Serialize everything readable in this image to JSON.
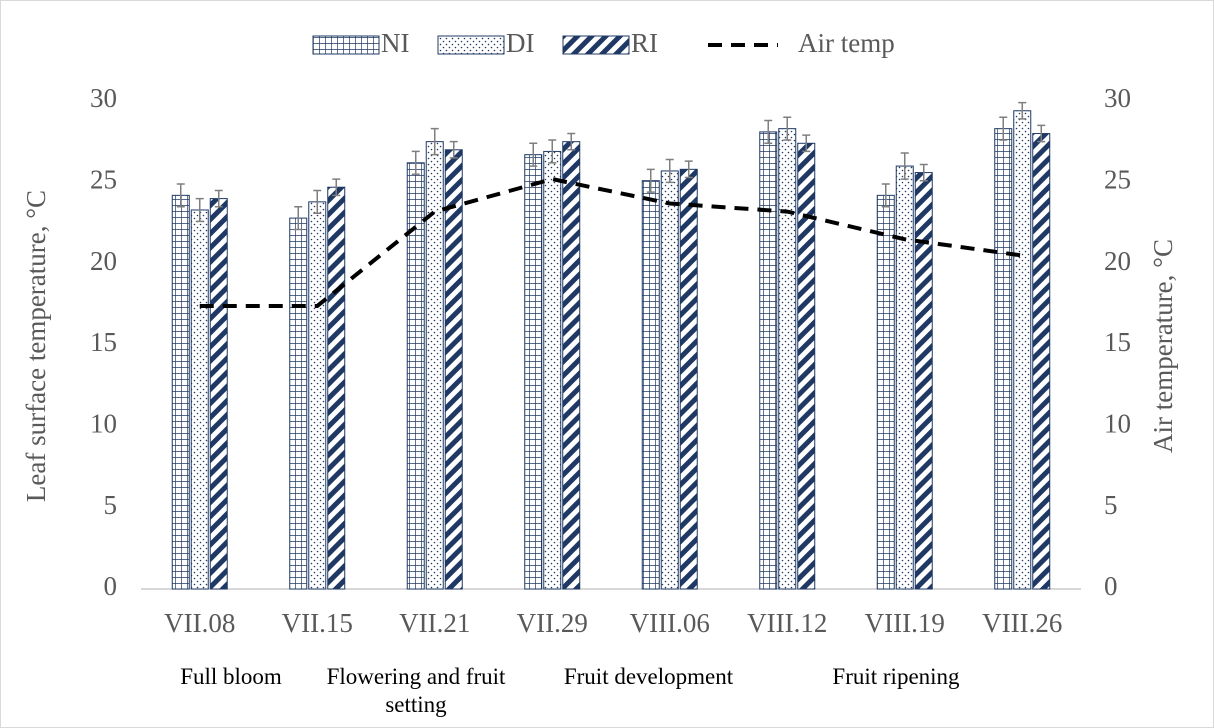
{
  "chart_data": {
    "type": "bar",
    "ylabel": "Leaf surface temperature, °C",
    "y2label": "Air temperature, °C",
    "annotations": [
      "Full bloom",
      "Flowering and fruit setting",
      "Fruit development",
      "Fruit ripening"
    ],
    "categories": [
      "VII.08",
      "VII.15",
      "VII.21",
      "VII.29",
      "VIII.06",
      "VIII.12",
      "VIII.19",
      "VIII.26"
    ],
    "series": [
      {
        "name": "NI",
        "color": "#1f3864",
        "pattern": "grid",
        "values": [
          24.2,
          22.8,
          26.2,
          26.7,
          25.1,
          28.1,
          24.2,
          28.3
        ],
        "errors": [
          0.7,
          0.7,
          0.7,
          0.7,
          0.7,
          0.7,
          0.7,
          0.7
        ]
      },
      {
        "name": "DI",
        "color": "#1f3864",
        "pattern": "dots",
        "values": [
          23.3,
          23.8,
          27.5,
          26.9,
          25.7,
          28.3,
          26.0,
          29.4
        ],
        "errors": [
          0.7,
          0.7,
          0.8,
          0.7,
          0.7,
          0.7,
          0.8,
          0.5
        ]
      },
      {
        "name": "RI",
        "color": "#1f3864",
        "pattern": "stripes",
        "values": [
          24.0,
          24.7,
          27.0,
          27.5,
          25.8,
          27.4,
          25.6,
          28.0
        ],
        "errors": [
          0.5,
          0.5,
          0.5,
          0.5,
          0.5,
          0.5,
          0.5,
          0.5
        ]
      },
      {
        "name": "Air temp",
        "type": "line",
        "axis": "y2",
        "color": "#000000",
        "values": [
          17.4,
          17.4,
          23.2,
          25.2,
          23.7,
          23.2,
          21.5,
          20.5
        ]
      }
    ],
    "ylim": [
      0,
      30
    ],
    "yticks": [
      0,
      5,
      10,
      15,
      20,
      25,
      30
    ],
    "y2lim": [
      0,
      30
    ],
    "y2ticks": [
      0,
      5,
      10,
      15,
      20,
      25,
      30
    ],
    "grid": false,
    "legend": "top"
  }
}
